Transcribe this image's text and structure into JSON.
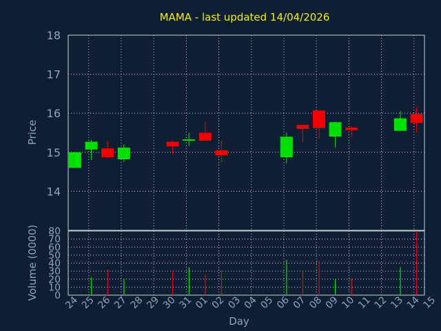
{
  "colors": {
    "background": "#0f1f33",
    "plot_border": "#c8d0d8",
    "grid": "#c8d0d8",
    "up": "#00e000",
    "down": "#f00000",
    "title": "#f2f200",
    "text": "#8fa3c0"
  },
  "chart_data": [
    {
      "type": "candlestick",
      "title": "MAMA - last updated 14/04/2026",
      "ylabel": "Price",
      "ylim": [
        13,
        18
      ],
      "yticks": [
        14,
        15,
        16,
        17,
        18
      ],
      "grid": true,
      "categories": [
        "24",
        "25",
        "26",
        "27",
        "28",
        "29",
        "30",
        "31",
        "01",
        "02",
        "03",
        "04",
        "05",
        "06",
        "07",
        "08",
        "09",
        "10",
        "11",
        "12",
        "13",
        "14",
        "15"
      ],
      "candles": [
        {
          "day": "24",
          "open": 14.6,
          "high": 15.0,
          "low": 14.6,
          "close": 15.0
        },
        {
          "day": "25",
          "open": 15.07,
          "high": 15.32,
          "low": 14.8,
          "close": 15.27
        },
        {
          "day": "26",
          "open": 15.1,
          "high": 15.3,
          "low": 14.85,
          "close": 14.87
        },
        {
          "day": "27",
          "open": 14.82,
          "high": 15.2,
          "low": 14.75,
          "close": 15.12
        },
        {
          "day": "30",
          "open": 15.27,
          "high": 15.3,
          "low": 14.95,
          "close": 15.15
        },
        {
          "day": "31",
          "open": 15.3,
          "high": 15.5,
          "low": 15.15,
          "close": 15.33
        },
        {
          "day": "01",
          "open": 15.5,
          "high": 15.8,
          "low": 15.3,
          "close": 15.3
        },
        {
          "day": "02",
          "open": 15.05,
          "high": 15.3,
          "low": 14.75,
          "close": 14.92
        },
        {
          "day": "06",
          "open": 14.87,
          "high": 15.5,
          "low": 14.72,
          "close": 15.4
        },
        {
          "day": "07",
          "open": 15.7,
          "high": 15.7,
          "low": 15.25,
          "close": 15.6
        },
        {
          "day": "08",
          "open": 16.07,
          "high": 16.07,
          "low": 15.35,
          "close": 15.62
        },
        {
          "day": "09",
          "open": 15.4,
          "high": 15.78,
          "low": 15.12,
          "close": 15.77
        },
        {
          "day": "10",
          "open": 15.63,
          "high": 15.67,
          "low": 15.4,
          "close": 15.57
        },
        {
          "day": "13",
          "open": 15.55,
          "high": 16.05,
          "low": 15.55,
          "close": 15.87
        },
        {
          "day": "14",
          "open": 15.98,
          "high": 16.15,
          "low": 15.5,
          "close": 15.75
        }
      ]
    },
    {
      "type": "bar",
      "ylabel": "Volume (0000)",
      "xlabel": "Day",
      "ylim": [
        0,
        80
      ],
      "yticks": [
        0,
        10,
        20,
        30,
        40,
        50,
        60,
        70,
        80
      ],
      "grid": true,
      "categories": [
        "24",
        "25",
        "26",
        "27",
        "28",
        "29",
        "30",
        "31",
        "01",
        "02",
        "03",
        "04",
        "05",
        "06",
        "07",
        "08",
        "09",
        "10",
        "11",
        "12",
        "13",
        "14",
        "15"
      ],
      "bars": [
        {
          "day": "25",
          "value": 22,
          "direction": "up"
        },
        {
          "day": "26",
          "value": 32,
          "direction": "down"
        },
        {
          "day": "27",
          "value": 20,
          "direction": "up"
        },
        {
          "day": "30",
          "value": 29,
          "direction": "down"
        },
        {
          "day": "31",
          "value": 35,
          "direction": "up"
        },
        {
          "day": "01",
          "value": 26,
          "direction": "down"
        },
        {
          "day": "02",
          "value": 31,
          "direction": "down"
        },
        {
          "day": "06",
          "value": 44,
          "direction": "up"
        },
        {
          "day": "07",
          "value": 29,
          "direction": "down"
        },
        {
          "day": "08",
          "value": 43,
          "direction": "down"
        },
        {
          "day": "09",
          "value": 20,
          "direction": "up"
        },
        {
          "day": "10",
          "value": 20,
          "direction": "down"
        },
        {
          "day": "13",
          "value": 35,
          "direction": "up"
        },
        {
          "day": "14",
          "value": 80,
          "direction": "down"
        }
      ]
    }
  ]
}
